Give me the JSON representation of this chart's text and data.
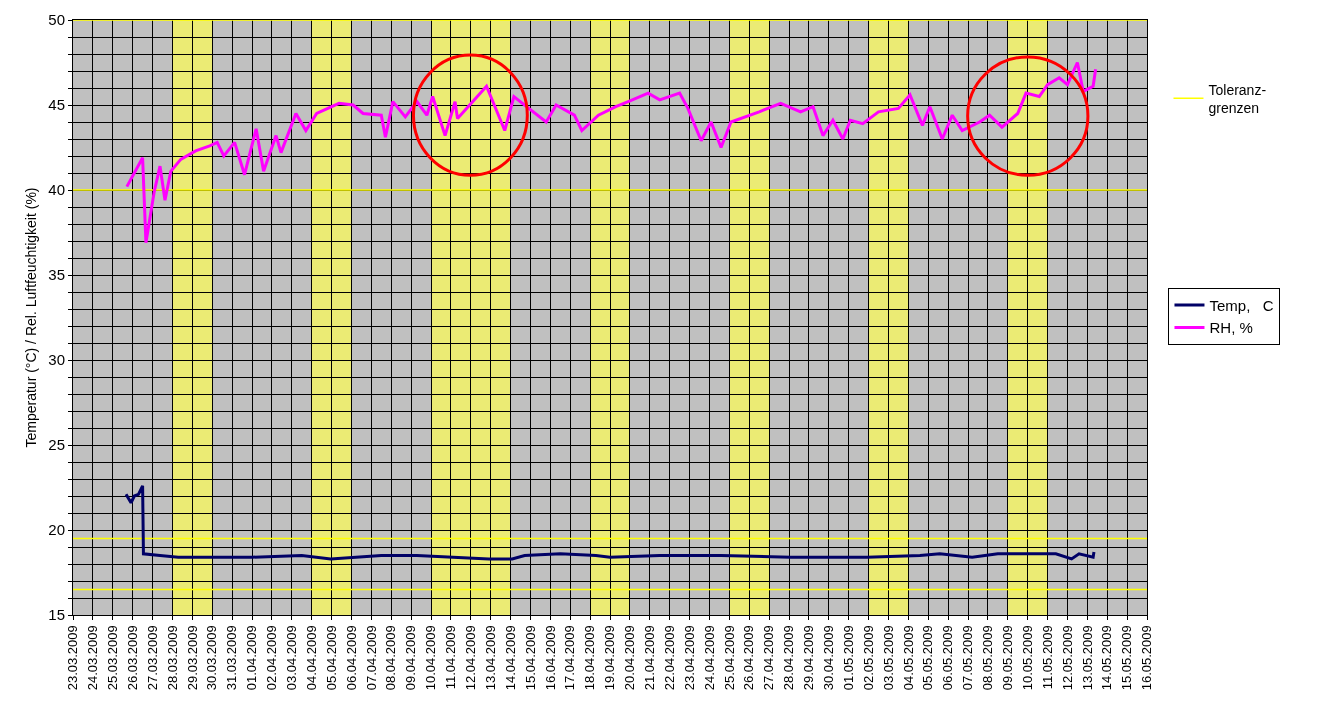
{
  "chart_data": {
    "type": "line",
    "ylabel": "Temperatur (°C) / Rel. Luftfeuchtigkeit (%)",
    "xlim": [
      "2009-03-23",
      "2009-05-16"
    ],
    "xticks": [
      {
        "value": "2009-03-23",
        "label": "23.03.2009"
      },
      {
        "value": "2009-03-24",
        "label": "24.03.2009"
      },
      {
        "value": "2009-03-25",
        "label": "25.03.2009"
      },
      {
        "value": "2009-03-26",
        "label": "26.03.2009"
      },
      {
        "value": "2009-03-27",
        "label": "27.03.2009"
      },
      {
        "value": "2009-03-28",
        "label": "28.03.2009"
      },
      {
        "value": "2009-03-29",
        "label": "29.03.2009"
      },
      {
        "value": "2009-03-30",
        "label": "30.03.2009"
      },
      {
        "value": "2009-03-31",
        "label": "31.03.2009"
      },
      {
        "value": "2009-04-01",
        "label": "01.04.2009"
      },
      {
        "value": "2009-04-02",
        "label": "02.04.2009"
      },
      {
        "value": "2009-04-03",
        "label": "03.04.2009"
      },
      {
        "value": "2009-04-04",
        "label": "04.04.2009"
      },
      {
        "value": "2009-04-05",
        "label": "05.04.2009"
      },
      {
        "value": "2009-04-06",
        "label": "06.04.2009"
      },
      {
        "value": "2009-04-07",
        "label": "07.04.2009"
      },
      {
        "value": "2009-04-08",
        "label": "08.04.2009"
      },
      {
        "value": "2009-04-09",
        "label": "09.04.2009"
      },
      {
        "value": "2009-04-10",
        "label": "10.04.2009"
      },
      {
        "value": "2009-04-11",
        "label": "11.04.2009"
      },
      {
        "value": "2009-04-12",
        "label": "12.04.2009"
      },
      {
        "value": "2009-04-13",
        "label": "13.04.2009"
      },
      {
        "value": "2009-04-14",
        "label": "14.04.2009"
      },
      {
        "value": "2009-04-15",
        "label": "15.04.2009"
      },
      {
        "value": "2009-04-16",
        "label": "16.04.2009"
      },
      {
        "value": "2009-04-17",
        "label": "17.04.2009"
      },
      {
        "value": "2009-04-18",
        "label": "18.04.2009"
      },
      {
        "value": "2009-04-19",
        "label": "19.04.2009"
      },
      {
        "value": "2009-04-20",
        "label": "20.04.2009"
      },
      {
        "value": "2009-04-21",
        "label": "21.04.2009"
      },
      {
        "value": "2009-04-22",
        "label": "22.04.2009"
      },
      {
        "value": "2009-04-23",
        "label": "23.04.2009"
      },
      {
        "value": "2009-04-24",
        "label": "24.04.2009"
      },
      {
        "value": "2009-04-25",
        "label": "25.04.2009"
      },
      {
        "value": "2009-04-26",
        "label": "26.04.2009"
      },
      {
        "value": "2009-04-27",
        "label": "27.04.2009"
      },
      {
        "value": "2009-04-28",
        "label": "28.04.2009"
      },
      {
        "value": "2009-04-29",
        "label": "29.04.2009"
      },
      {
        "value": "2009-04-30",
        "label": "30.04.2009"
      },
      {
        "value": "2009-05-01",
        "label": "01.05.2009"
      },
      {
        "value": "2009-05-02",
        "label": "02.05.2009"
      },
      {
        "value": "2009-05-03",
        "label": "03.05.2009"
      },
      {
        "value": "2009-05-04",
        "label": "04.05.2009"
      },
      {
        "value": "2009-05-05",
        "label": "05.05.2009"
      },
      {
        "value": "2009-05-06",
        "label": "06.05.2009"
      },
      {
        "value": "2009-05-07",
        "label": "07.05.2009"
      },
      {
        "value": "2009-05-08",
        "label": "08.05.2009"
      },
      {
        "value": "2009-05-09",
        "label": "09.05.2009"
      },
      {
        "value": "2009-05-10",
        "label": "10.05.2009"
      },
      {
        "value": "2009-05-11",
        "label": "11.05.2009"
      },
      {
        "value": "2009-05-12",
        "label": "12.05.2009"
      },
      {
        "value": "2009-05-13",
        "label": "13.05.2009"
      },
      {
        "value": "2009-05-14",
        "label": "14.05.2009"
      },
      {
        "value": "2009-05-15",
        "label": "15.05.2009"
      },
      {
        "value": "2009-05-16",
        "label": "16.05.2009"
      }
    ],
    "ylim": [
      15,
      50
    ],
    "yticks": [
      15,
      {
        "value": 16,
        "label": null
      },
      {
        "value": 17,
        "label": null
      },
      {
        "value": 18,
        "label": null
      },
      {
        "value": 19,
        "label": null
      },
      20,
      {
        "value": 21,
        "label": null
      },
      {
        "value": 22,
        "label": null
      },
      {
        "value": 23,
        "label": null
      },
      {
        "value": 24,
        "label": null
      },
      25,
      {
        "value": 26,
        "label": null
      },
      {
        "value": 27,
        "label": null
      },
      {
        "value": 28,
        "label": null
      },
      {
        "value": 29,
        "label": null
      },
      30,
      {
        "value": 31,
        "label": null
      },
      {
        "value": 32,
        "label": null
      },
      {
        "value": 33,
        "label": null
      },
      {
        "value": 34,
        "label": null
      },
      35,
      {
        "value": 36,
        "label": null
      },
      {
        "value": 37,
        "label": null
      },
      {
        "value": 38,
        "label": null
      },
      {
        "value": 39,
        "label": null
      },
      40,
      {
        "value": 41,
        "label": null
      },
      {
        "value": 42,
        "label": null
      },
      {
        "value": 43,
        "label": null
      },
      {
        "value": 44,
        "label": null
      },
      45,
      {
        "value": 46,
        "label": null
      },
      {
        "value": 47,
        "label": null
      },
      {
        "value": 48,
        "label": null
      },
      {
        "value": 49,
        "label": null
      },
      50
    ],
    "grid": true,
    "legend": "right",
    "marker": "none",
    "line_style": "solid",
    "series": [
      {
        "name": "Temp,   C",
        "color": "#000066",
        "x": [
          "2009-03-25T16:00",
          "2009-03-25T22:00",
          "2009-03-26T02:00",
          "2009-03-26T07:00",
          "2009-03-26T12:00",
          "2009-03-26T13:00",
          "2009-03-27T09:00",
          "2009-03-28T07:00",
          "2009-04-01T00:00",
          "2009-04-03T12:00",
          "2009-04-04T23:00",
          "2009-04-07T12:00",
          "2009-04-09T07:00",
          "2009-04-12T22:00",
          "2009-04-14T02:00",
          "2009-04-14T17:00",
          "2009-04-16T12:00",
          "2009-04-18T07:00",
          "2009-04-19T00:00",
          "2009-04-21T12:00",
          "2009-04-24T14:00",
          "2009-04-28T02:00",
          "2009-05-01T22:00",
          "2009-05-04T14:00",
          "2009-05-05T14:00",
          "2009-05-07T05:00",
          "2009-05-08T12:00",
          "2009-05-11T10:00",
          "2009-05-12T05:00",
          "2009-05-12T14:00",
          "2009-05-13T07:00",
          "2009-05-13T08:00"
        ],
        "values": [
          22.1,
          21.6,
          22.0,
          22.1,
          22.6,
          18.6,
          18.5,
          18.4,
          18.4,
          18.5,
          18.3,
          18.5,
          18.5,
          18.3,
          18.3,
          18.5,
          18.6,
          18.5,
          18.4,
          18.5,
          18.5,
          18.4,
          18.4,
          18.5,
          18.6,
          18.4,
          18.6,
          18.6,
          18.3,
          18.6,
          18.4,
          18.7
        ]
      },
      {
        "name": "RH, %",
        "color": "#ff00ff",
        "x": [
          "2009-03-25T17:00",
          "2009-03-26T12:00",
          "2009-03-26T16:00",
          "2009-03-27T02:00",
          "2009-03-27T09:00",
          "2009-03-27T15:00",
          "2009-03-27T22:00",
          "2009-03-28T10:00",
          "2009-03-29T04:00",
          "2009-03-29T21:00",
          "2009-03-30T06:00",
          "2009-03-30T14:00",
          "2009-03-31T03:00",
          "2009-03-31T15:00",
          "2009-04-01T05:00",
          "2009-04-01T14:00",
          "2009-04-02T05:00",
          "2009-04-02T11:00",
          "2009-04-03T05:00",
          "2009-04-03T17:00",
          "2009-04-04T06:00",
          "2009-04-05T09:00",
          "2009-04-06T02:00",
          "2009-04-06T14:00",
          "2009-04-07T12:00",
          "2009-04-07T17:00",
          "2009-04-08T02:00",
          "2009-04-08T17:00",
          "2009-04-09T07:00",
          "2009-04-09T19:00",
          "2009-04-10T02:00",
          "2009-04-10T17:00",
          "2009-04-11T05:00",
          "2009-04-11T08:00",
          "2009-04-12T19:00",
          "2009-04-13T17:00",
          "2009-04-14T04:00",
          "2009-04-14T22:00",
          "2009-04-15T19:00",
          "2009-04-16T07:00",
          "2009-04-17T05:00",
          "2009-04-17T14:00",
          "2009-04-18T10:00",
          "2009-04-19T07:00",
          "2009-04-19T22:00",
          "2009-04-20T22:00",
          "2009-04-21T12:00",
          "2009-04-22T12:00",
          "2009-04-22T22:00",
          "2009-04-23T14:00",
          "2009-04-24T02:00",
          "2009-04-24T14:00",
          "2009-04-25T02:00",
          "2009-04-26T12:00",
          "2009-04-27T14:00",
          "2009-04-28T14:00",
          "2009-04-29T05:00",
          "2009-04-29T17:00",
          "2009-04-30T05:00",
          "2009-04-30T17:00",
          "2009-05-01T02:00",
          "2009-05-01T17:00",
          "2009-05-02T12:00",
          "2009-05-03T12:00",
          "2009-05-04T02:00",
          "2009-05-04T17:00",
          "2009-05-05T02:00",
          "2009-05-05T17:00",
          "2009-05-06T05:00",
          "2009-05-06T17:00",
          "2009-05-07T14:00",
          "2009-05-08T02:00",
          "2009-05-08T17:00",
          "2009-05-09T12:00",
          "2009-05-09T22:00",
          "2009-05-10T14:00",
          "2009-05-11T00:00",
          "2009-05-11T14:00",
          "2009-05-12T00:00",
          "2009-05-12T12:00",
          "2009-05-12T19:00",
          "2009-05-13T07:00",
          "2009-05-13T10:00"
        ],
        "values": [
          40.2,
          41.9,
          36.9,
          39.9,
          41.4,
          39.4,
          41.1,
          41.8,
          42.3,
          42.6,
          42.8,
          42.0,
          42.8,
          40.9,
          43.6,
          41.1,
          43.2,
          42.2,
          44.5,
          43.5,
          44.5,
          45.1,
          45.0,
          44.5,
          44.4,
          43.1,
          45.2,
          44.3,
          45.2,
          44.4,
          45.5,
          43.2,
          45.2,
          44.2,
          46.1,
          43.5,
          45.5,
          44.8,
          44.0,
          45.0,
          44.4,
          43.5,
          44.4,
          44.9,
          45.2,
          45.7,
          45.3,
          45.7,
          44.8,
          42.9,
          44.0,
          42.5,
          44.0,
          44.6,
          45.1,
          44.6,
          44.9,
          43.2,
          44.1,
          43.0,
          44.1,
          43.9,
          44.6,
          44.8,
          45.6,
          43.8,
          44.9,
          43.0,
          44.4,
          43.5,
          44.0,
          44.4,
          43.7,
          44.5,
          45.7,
          45.5,
          46.2,
          46.6,
          46.2,
          47.5,
          45.8,
          46.1,
          47.1
        ]
      }
    ],
    "ref_lines": [
      {
        "axis": "y",
        "value": 50,
        "label": "Toleranz-grenzen",
        "color": "#ffff00"
      },
      {
        "axis": "y",
        "value": 40,
        "color": "#ffff00"
      },
      {
        "axis": "y",
        "value": 19.5,
        "color": "#ffff00"
      },
      {
        "axis": "y",
        "value": 16.5,
        "color": "#ffff00"
      }
    ],
    "bands": [
      {
        "axis": "x",
        "from": "2009-03-28",
        "to": "2009-03-30",
        "color": "#f2f266"
      },
      {
        "axis": "x",
        "from": "2009-04-04",
        "to": "2009-04-06",
        "color": "#f2f266"
      },
      {
        "axis": "x",
        "from": "2009-04-10",
        "to": "2009-04-14",
        "color": "#f2f266"
      },
      {
        "axis": "x",
        "from": "2009-04-18",
        "to": "2009-04-20",
        "color": "#f2f266"
      },
      {
        "axis": "x",
        "from": "2009-04-25",
        "to": "2009-04-27",
        "color": "#f2f266"
      },
      {
        "axis": "x",
        "from": "2009-05-02",
        "to": "2009-05-04",
        "color": "#f2f266"
      },
      {
        "axis": "x",
        "from": "2009-05-09",
        "to": "2009-05-11",
        "color": "#f2f266"
      }
    ]
  }
}
